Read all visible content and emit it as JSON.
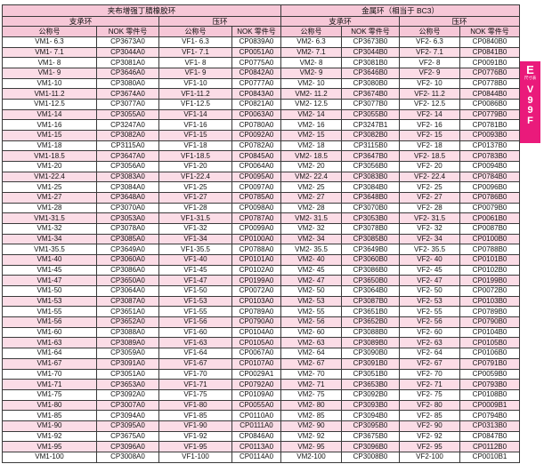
{
  "table": {
    "section_titles": [
      "夹布增强丁腈橡胶环",
      "金属环（相当于 BC3）"
    ],
    "group_headers": [
      "支承环",
      "压环",
      "支承环",
      "压环"
    ],
    "column_headers": [
      "公称号",
      "NOK 零件号",
      "公称号",
      "NOK 零件号",
      "公称号",
      "NOK 零件号",
      "公称号",
      "NOK 零件号"
    ],
    "rows": [
      [
        "VM1- 6.3",
        "CP3673A0",
        "VF1- 6.3",
        "CP0839A0",
        "VM2- 6.3",
        "CP3673B0",
        "VF2- 6.3",
        "CP0840B0"
      ],
      [
        "VM1- 7.1",
        "CP3044A0",
        "VF1- 7.1",
        "CP0051A0",
        "VM2- 7.1",
        "CP3044B0",
        "VF2- 7.1",
        "CP0841B0"
      ],
      [
        "VM1- 8",
        "CP3081A0",
        "VF1- 8",
        "CP0775A0",
        "VM2- 8",
        "CP3081B0",
        "VF2- 8",
        "CP0091B0"
      ],
      [
        "VM1- 9",
        "CP3646A0",
        "VF1- 9",
        "CP0842A0",
        "VM2- 9",
        "CP3646B0",
        "VF2- 9",
        "CP0776B0"
      ],
      [
        "VM1-10",
        "CP3080A0",
        "VF1-10",
        "CP0777A0",
        "VM2- 10",
        "CP3080B0",
        "VF2- 10",
        "CP0778B0"
      ],
      [
        "VM1-11.2",
        "CP3674A0",
        "VF1-11.2",
        "CP0843A0",
        "VM2- 11.2",
        "CP3674B0",
        "VF2- 11.2",
        "CP0844B0"
      ],
      [
        "VM1-12.5",
        "CP3077A0",
        "VF1-12.5",
        "CP0821A0",
        "VM2- 12.5",
        "CP3077B0",
        "VF2- 12.5",
        "CP0086B0"
      ],
      [
        "VM1-14",
        "CP3055A0",
        "VF1-14",
        "CP0063A0",
        "VM2- 14",
        "CP3055B0",
        "VF2- 14",
        "CP0779B0"
      ],
      [
        "VM1-16",
        "CP3247A0",
        "VF1-16",
        "CP0780A0",
        "VM2- 16",
        "CP3247B1",
        "VF2- 16",
        "CP0781B0"
      ],
      [
        "VM1-15",
        "CP3082A0",
        "VF1-15",
        "CP0092A0",
        "VM2- 15",
        "CP3082B0",
        "VF2- 15",
        "CP0093B0"
      ],
      [
        "VM1-18",
        "CP3115A0",
        "VF1-18",
        "CP0782A0",
        "VM2- 18",
        "CP3115B0",
        "VF2- 18",
        "CP0137B0"
      ],
      [
        "VM1-18.5",
        "CP3647A0",
        "VF1-18.5",
        "CP0845A0",
        "VM2- 18.5",
        "CP3647B0",
        "VF2- 18.5",
        "CP0783B0"
      ],
      [
        "VM1-20",
        "CP3056A0",
        "VF1-20",
        "CP0064A0",
        "VM2- 20",
        "CP3056B0",
        "VF2- 20",
        "CP0094B0"
      ],
      [
        "VM1-22.4",
        "CP3083A0",
        "VF1-22.4",
        "CP0095A0",
        "VM2- 22.4",
        "CP3083B0",
        "VF2- 22.4",
        "CP0784B0"
      ],
      [
        "VM1-25",
        "CP3084A0",
        "VF1-25",
        "CP0097A0",
        "VM2- 25",
        "CP3084B0",
        "VF2- 25",
        "CP0096B0"
      ],
      [
        "VM1-27",
        "CP3648A0",
        "VF1-27",
        "CP0785A0",
        "VM2- 27",
        "CP3648B0",
        "VF2- 27",
        "CP0786B0"
      ],
      [
        "VM1-28",
        "CP3070A0",
        "VF1-28",
        "CP0098A0",
        "VM2- 28",
        "CP3070B0",
        "VF2- 28",
        "CP0079B0"
      ],
      [
        "VM1-31.5",
        "CP3053A0",
        "VF1-31.5",
        "CP0787A0",
        "VM2- 31.5",
        "CP3053B0",
        "VF2- 31.5",
        "CP0061B0"
      ],
      [
        "VM1-32",
        "CP3078A0",
        "VF1-32",
        "CP0099A0",
        "VM2- 32",
        "CP3078B0",
        "VF2- 32",
        "CP0087B0"
      ],
      [
        "VM1-34",
        "CP3085A0",
        "VF1-34",
        "CP0100A0",
        "VM2- 34",
        "CP3085B0",
        "VF2- 34",
        "CP0100B0"
      ],
      [
        "VM1-35.5",
        "CP3649A0",
        "VF1-35.5",
        "CP0788A0",
        "VM2- 35.5",
        "CP3649B0",
        "VF2- 35.5",
        "CP0788B0"
      ],
      [
        "VM1-40",
        "CP3060A0",
        "VF1-40",
        "CP0101A0",
        "VM2- 40",
        "CP3060B0",
        "VF2- 40",
        "CP0101B0"
      ],
      [
        "VM1-45",
        "CP3086A0",
        "VF1-45",
        "CP0102A0",
        "VM2- 45",
        "CP3086B0",
        "VF2- 45",
        "CP0102B0"
      ],
      [
        "VM1-47",
        "CP3650A0",
        "VF1-47",
        "CP0199A0",
        "VM2- 47",
        "CP3650B0",
        "VF2- 47",
        "CP0199B0"
      ],
      [
        "VM1-50",
        "CP3064A0",
        "VF1-50",
        "CP0072A0",
        "VM2- 50",
        "CP3064B0",
        "VF2- 50",
        "CP0072B0"
      ],
      [
        "VM1-53",
        "CP3087A0",
        "VF1-53",
        "CP0103A0",
        "VM2- 53",
        "CP3087B0",
        "VF2- 53",
        "CP0103B0"
      ],
      [
        "VM1-55",
        "CP3651A0",
        "VF1-55",
        "CP0789A0",
        "VM2- 55",
        "CP3651B0",
        "VF2- 55",
        "CP0789B0"
      ],
      [
        "VM1-56",
        "CP3652A0",
        "VF1-56",
        "CP0790A0",
        "VM2- 56",
        "CP3652B0",
        "VF2- 56",
        "CP0790B0"
      ],
      [
        "VM1-60",
        "CP3088A0",
        "VF1-60",
        "CP0104A0",
        "VM2- 60",
        "CP3088B0",
        "VF2- 60",
        "CP0104B0"
      ],
      [
        "VM1-63",
        "CP3089A0",
        "VF1-63",
        "CP0105A0",
        "VM2- 63",
        "CP3089B0",
        "VF2- 63",
        "CP0105B0"
      ],
      [
        "VM1-64",
        "CP3059A0",
        "VF1-64",
        "CP0067A0",
        "VM2- 64",
        "CP3090B0",
        "VF2- 64",
        "CP0106B0"
      ],
      [
        "VM1-67",
        "CP3091A0",
        "VF1-67",
        "CP0107A0",
        "VM2- 67",
        "CP3091B0",
        "VF2- 67",
        "CP0791B0"
      ],
      [
        "VM1-70",
        "CP3051A0",
        "VF1-70",
        "CP0029A1",
        "VM2- 70",
        "CP3051B0",
        "VF2- 70",
        "CP0059B0"
      ],
      [
        "VM1-71",
        "CP3653A0",
        "VF1-71",
        "CP0792A0",
        "VM2- 71",
        "CP3653B0",
        "VF2- 71",
        "CP0793B0"
      ],
      [
        "VM1-75",
        "CP3092A0",
        "VF1-75",
        "CP0109A0",
        "VM2- 75",
        "CP3092B0",
        "VF2- 75",
        "CP0108B0"
      ],
      [
        "VM1-80",
        "CP3007A0",
        "VF1-80",
        "CP0055A0",
        "VM2- 80",
        "CP3093B0",
        "VF2- 80",
        "CP0009B1"
      ],
      [
        "VM1-85",
        "CP3094A0",
        "VF1-85",
        "CP0110A0",
        "VM2- 85",
        "CP3094B0",
        "VF2- 85",
        "CP0794B0"
      ],
      [
        "VM1-90",
        "CP3095A0",
        "VF1-90",
        "CP0111A0",
        "VM2- 90",
        "CP3095B0",
        "VF2- 90",
        "CP0313B0"
      ],
      [
        "VM1-92",
        "CP3675A0",
        "VF1-92",
        "CP0846A0",
        "VM2- 92",
        "CP3675B0",
        "VF2- 92",
        "CP0847B0"
      ],
      [
        "VM1-95",
        "CP3096A0",
        "VF1-95",
        "CP0113A0",
        "VM2- 95",
        "CP3096B0",
        "VF2- 95",
        "CP0112B0"
      ],
      [
        "VM1-100",
        "CP3008A0",
        "VF1-100",
        "CP0114A0",
        "VM2-100",
        "CP3008B0",
        "VF2-100",
        "CP0010B1"
      ]
    ]
  },
  "side_tab": {
    "top_letter": "E",
    "top_caption": "尺寸表",
    "code_letters": [
      "V",
      "9",
      "9",
      "F"
    ]
  },
  "colors": {
    "header_pink": "#F6C7D7",
    "stripe_pink": "#FBDCE6",
    "tab_magenta": "#EA1A7B"
  }
}
